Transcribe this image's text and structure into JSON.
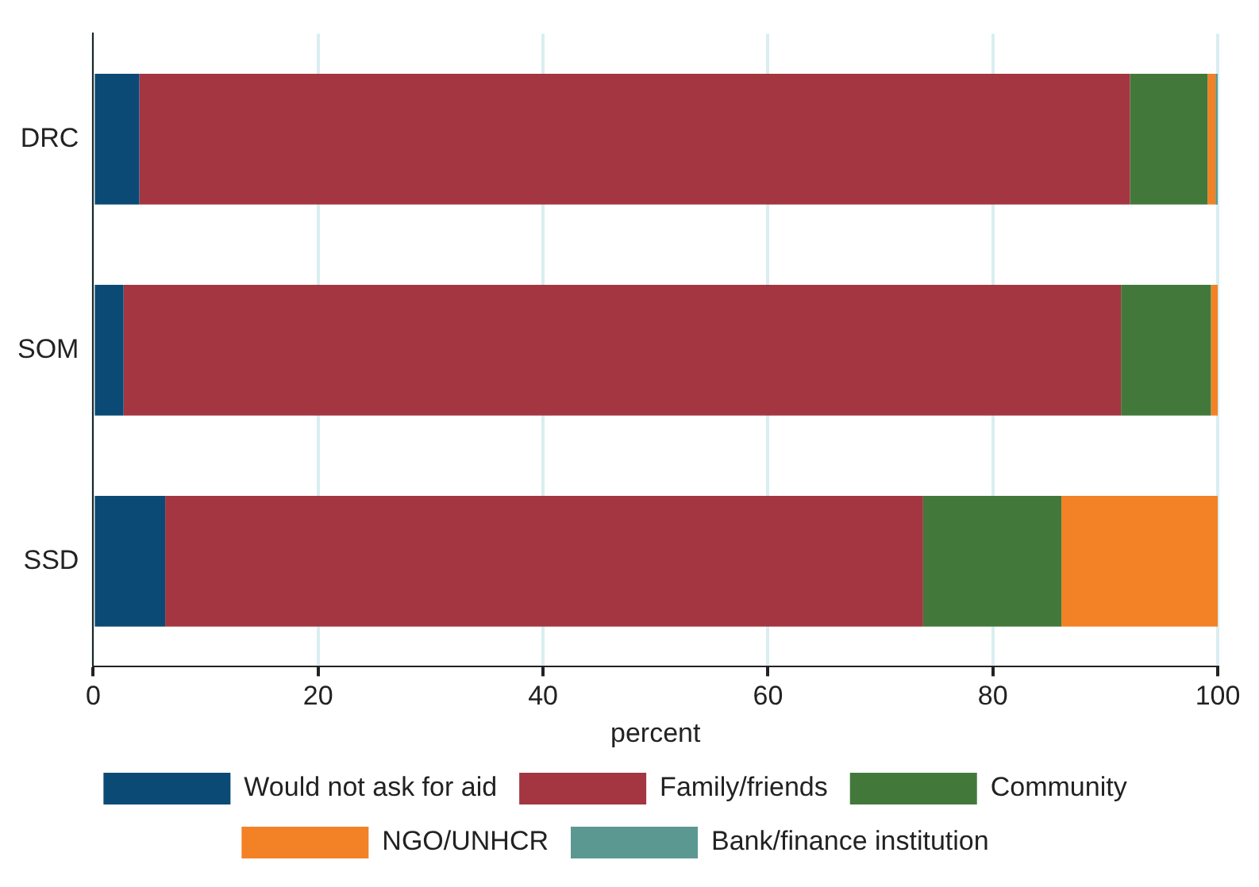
{
  "chart_data": {
    "type": "bar",
    "orientation": "horizontal",
    "stacked": true,
    "xlabel": "percent",
    "categories": [
      "DRC",
      "SOM",
      "SSD"
    ],
    "series": [
      {
        "name": "Would not ask for aid",
        "color": "#0b4a75",
        "values": [
          4.1,
          2.7,
          6.4
        ]
      },
      {
        "name": "Family/friends",
        "color": "#a33641",
        "values": [
          88.1,
          88.7,
          67.4
        ]
      },
      {
        "name": "Community",
        "color": "#42793b",
        "values": [
          6.9,
          8.0,
          12.3
        ]
      },
      {
        "name": "NGO/UNHCR",
        "color": "#f38125",
        "values": [
          0.7,
          0.6,
          13.9
        ]
      },
      {
        "name": "Bank/finance institution",
        "color": "#5b9891",
        "values": [
          0.2,
          0,
          0
        ]
      }
    ],
    "xlim": [
      0,
      100
    ],
    "xticks": [
      0,
      20,
      40,
      60,
      80,
      100
    ],
    "grid": "x",
    "legend": "bottom"
  }
}
